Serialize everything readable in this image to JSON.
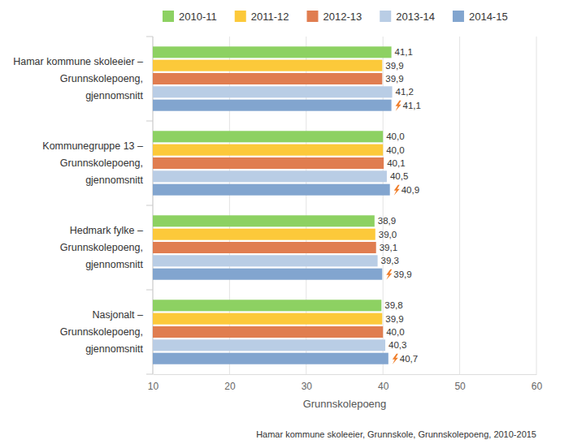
{
  "chart_data": {
    "type": "bar",
    "orientation": "horizontal",
    "categories": [
      "Hamar kommune skoleeier –\nGrunnskolepoeng,\ngjennomsnitt",
      "Kommunegruppe 13 –\nGrunnskolepoeng,\ngjennomsnitt",
      "Hedmark fylke –\nGrunnskolepoeng,\ngjennomsnitt",
      "Nasjonalt –\nGrunnskolepoeng,\ngjennomsnitt"
    ],
    "series": [
      {
        "name": "2010-11",
        "color": "#8dd162",
        "values": [
          41.1,
          40.0,
          38.9,
          39.8
        ],
        "value_labels": [
          "41,1",
          "40,0",
          "38,9",
          "39,8"
        ]
      },
      {
        "name": "2011-12",
        "color": "#fcc93a",
        "values": [
          39.9,
          40.0,
          39.0,
          39.9
        ],
        "value_labels": [
          "39,9",
          "40,0",
          "39,0",
          "39,9"
        ]
      },
      {
        "name": "2012-13",
        "color": "#e07d50",
        "values": [
          39.9,
          40.1,
          39.1,
          40.0
        ],
        "value_labels": [
          "39,9",
          "40,1",
          "39,1",
          "40,0"
        ]
      },
      {
        "name": "2013-14",
        "color": "#b9cde5",
        "values": [
          41.2,
          40.5,
          39.3,
          40.3
        ],
        "value_labels": [
          "41,2",
          "40,5",
          "39,3",
          "40,3"
        ]
      },
      {
        "name": "2014-15",
        "color": "#82a5cf",
        "values": [
          41.1,
          40.9,
          39.9,
          40.7
        ],
        "value_labels": [
          "41,1",
          "40,9",
          "39,9",
          "40,7"
        ]
      }
    ],
    "xlim": [
      10,
      60
    ],
    "xticks": [
      10,
      20,
      30,
      40,
      50,
      60
    ],
    "xlabel": "Grunnskolepoeng",
    "caption": "Hamar kommune skoleeier, Grunnskole, Grunnskolepoeng, 2010-2015",
    "grid": true,
    "legend": "top",
    "data_labels": true
  }
}
